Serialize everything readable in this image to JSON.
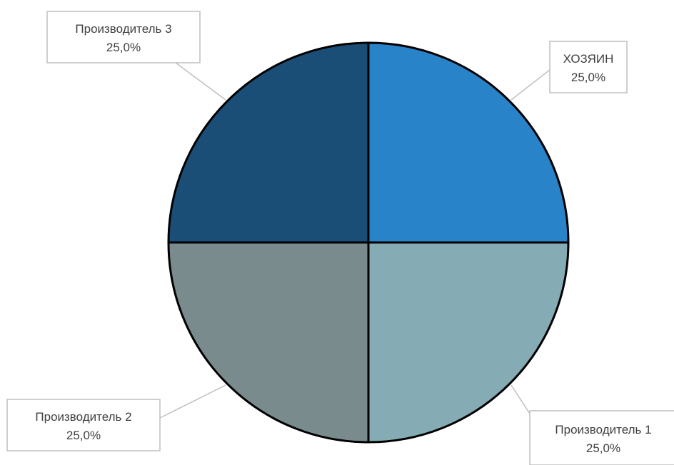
{
  "chart_data": {
    "type": "pie",
    "title": "",
    "start_angle": "12 o'clock, clockwise",
    "slices": [
      {
        "label": "ХОЗЯИН",
        "value": 25.0,
        "value_label": "25,0%",
        "color": "#2883c8"
      },
      {
        "label": "Производитель 1",
        "value": 25.0,
        "value_label": "25,0%",
        "color": "#85abb5"
      },
      {
        "label": "Производитель 2",
        "value": 25.0,
        "value_label": "25,0%",
        "color": "#7a8b8d"
      },
      {
        "label": "Производитель 3",
        "value": 25.0,
        "value_label": "25,0%",
        "color": "#1a4e77"
      }
    ],
    "legend": "none",
    "data_labels": "callouts"
  }
}
